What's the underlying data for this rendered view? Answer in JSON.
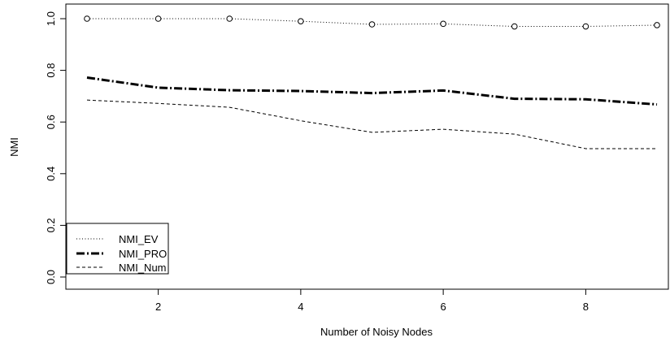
{
  "chart_data": {
    "type": "line",
    "title": "",
    "xlabel": "Number of Noisy Nodes",
    "ylabel": "NMI",
    "x": [
      1,
      2,
      3,
      4,
      5,
      6,
      7,
      8,
      9
    ],
    "xlim": [
      1,
      9
    ],
    "ylim": [
      0.0,
      1.0
    ],
    "xticks": [
      2,
      4,
      6,
      8
    ],
    "yticks": [
      0.0,
      0.2,
      0.4,
      0.6,
      0.8,
      1.0
    ],
    "xtick_labels": [
      "2",
      "4",
      "6",
      "8"
    ],
    "ytick_labels": [
      "0.0",
      "0.2",
      "0.4",
      "0.6",
      "0.8",
      "1.0"
    ],
    "grid": false,
    "legend_position": "bottom-left",
    "series": [
      {
        "name": "NMI_EV",
        "style": "dotted",
        "markers": "open-circle",
        "values": [
          1.0,
          1.0,
          1.0,
          0.99,
          0.978,
          0.98,
          0.97,
          0.97,
          0.975
        ]
      },
      {
        "name": "NMI_PRO",
        "style": "dash-dot-thick",
        "markers": "none",
        "values": [
          0.772,
          0.733,
          0.723,
          0.72,
          0.712,
          0.722,
          0.69,
          0.688,
          0.668
        ]
      },
      {
        "name": "NMI_Num",
        "style": "dashed",
        "markers": "none",
        "values": [
          0.685,
          0.672,
          0.657,
          0.605,
          0.56,
          0.572,
          0.553,
          0.497,
          0.497
        ]
      }
    ]
  }
}
